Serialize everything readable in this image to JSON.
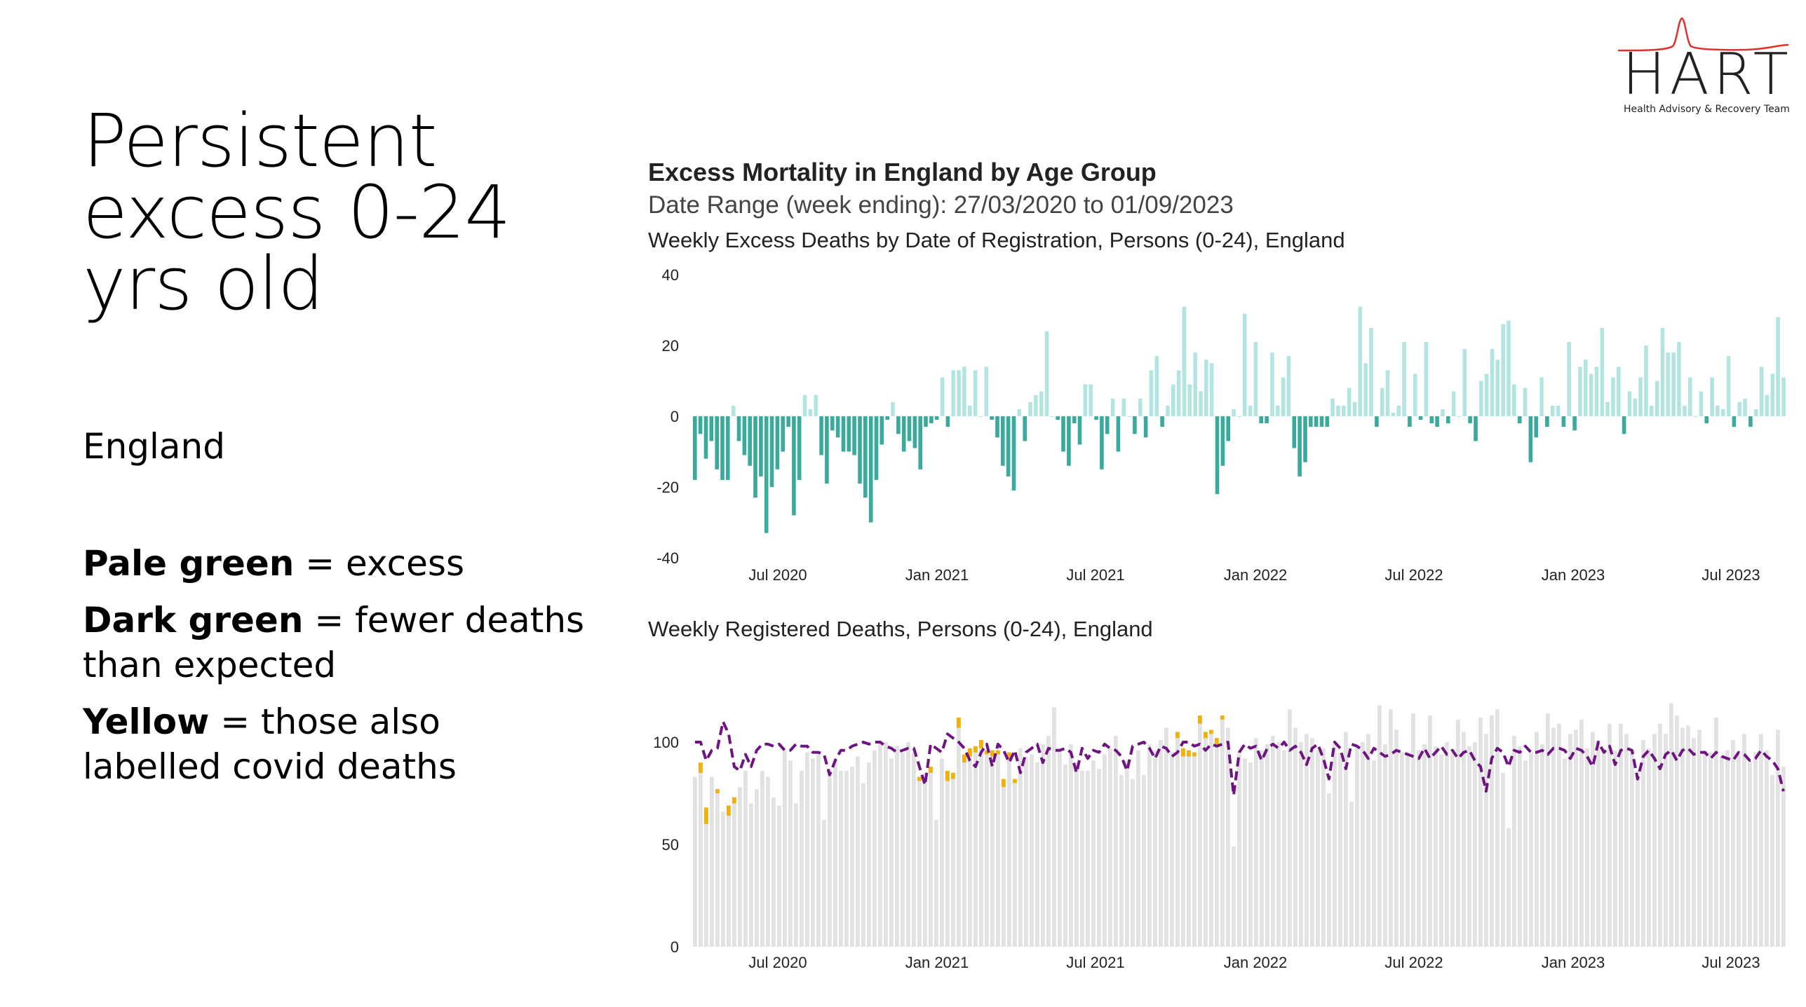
{
  "slide": {
    "title_lines": [
      "Persistent",
      "excess 0-24",
      "yrs old"
    ],
    "region": "England",
    "notes": [
      {
        "bold": "Pale green",
        "rest": " = excess"
      },
      {
        "bold": "Dark green",
        "rest": " = fewer deaths than expected"
      },
      {
        "bold": "Yellow",
        "rest": " = those also labelled covid deaths"
      }
    ]
  },
  "logo": {
    "word": "HART",
    "tagline": "Health Advisory & Recovery Team",
    "accent_color": "#e0302a"
  },
  "chart_header": {
    "title": "Excess Mortality in England by Age Group",
    "subtitle": "Date Range (week ending): 27/03/2020 to 01/09/2023"
  },
  "chart_data": [
    {
      "type": "bar",
      "title": "Weekly Excess Deaths by Date of Registration, Persons (0-24), England",
      "xlabel": "",
      "ylabel": "",
      "ylim": [
        -40,
        40
      ],
      "yticks": [
        40,
        20,
        0,
        -20,
        -40
      ],
      "xticks": [
        "Jul 2020",
        "Jan 2021",
        "Jul 2021",
        "Jan 2022",
        "Jul 2022",
        "Jan 2023",
        "Jul 2023"
      ],
      "colors": {
        "positive": "#b2e4e2",
        "negative": "#3aaa9c"
      },
      "values": [
        -18,
        -5,
        -12,
        -7,
        -15,
        -18,
        -18,
        3,
        -7,
        -11,
        -14,
        -23,
        -17,
        -33,
        -20,
        -15,
        -10,
        -3,
        -28,
        -18,
        6,
        2,
        6,
        -11,
        -19,
        -4,
        -6,
        -10,
        -10,
        -11,
        -19,
        -23,
        -30,
        -18,
        -8,
        -1,
        4,
        -5,
        -10,
        -7,
        -9,
        -15,
        -3,
        -2,
        -1,
        11,
        -3,
        13,
        13,
        14,
        3,
        13,
        0,
        14,
        -1,
        -6,
        -14,
        -17,
        -21,
        2,
        -7,
        4,
        6,
        7,
        24,
        0,
        -1,
        -10,
        -14,
        -2,
        -8,
        9,
        9,
        -1,
        -15,
        -5,
        5,
        -10,
        5,
        0,
        -5,
        5,
        -6,
        13,
        17,
        -3,
        3,
        9,
        13,
        31,
        9,
        18,
        7,
        16,
        15,
        -22,
        -14,
        -7,
        2,
        0,
        29,
        3,
        21,
        -2,
        -2,
        18,
        3,
        11,
        17,
        -9,
        -17,
        -13,
        -3,
        -3,
        -3,
        -3,
        5,
        3,
        3,
        8,
        4,
        31,
        15,
        25,
        -3,
        8,
        13,
        1,
        3,
        21,
        -3,
        12,
        -1,
        21,
        -2,
        -3,
        2,
        -2,
        7,
        0,
        19,
        -2,
        -7,
        10,
        12,
        19,
        16,
        26,
        27,
        9,
        -2,
        8,
        -13,
        -6,
        11,
        -3,
        3,
        3,
        -3,
        21,
        -4,
        14,
        16,
        12,
        14,
        25,
        4,
        11,
        14,
        -5,
        7,
        5,
        11,
        20,
        3,
        10,
        25,
        18,
        18,
        21,
        3,
        11,
        0,
        7,
        -2,
        11,
        3,
        2,
        17,
        -3,
        4,
        5,
        -3,
        2,
        14,
        6,
        12,
        28,
        11
      ]
    },
    {
      "type": "bar",
      "title": "Weekly Registered Deaths, Persons (0-24), England",
      "xlabel": "",
      "ylabel": "",
      "ylim": [
        0,
        132
      ],
      "yticks": [
        100,
        50,
        0
      ],
      "xticks": [
        "Jul 2020",
        "Jan 2021",
        "Jul 2021",
        "Jan 2022",
        "Jul 2022",
        "Jan 2023",
        "Jul 2023"
      ],
      "colors": {
        "deaths": "#e2e2e2",
        "covid": "#f2b00e",
        "expected": "#6e1480"
      },
      "series": [
        {
          "name": "",
          "values": [
            83,
            90,
            68,
            83,
            77,
            66,
            69,
            73,
            78,
            86,
            70,
            77,
            86,
            83,
            73,
            69,
            96,
            91,
            70,
            86,
            95,
            92,
            95,
            62,
            87,
            92,
            86,
            86,
            88,
            93,
            80,
            90,
            96,
            100,
            100,
            92,
            98,
            95,
            100,
            95,
            83,
            85,
            88,
            62,
            92,
            86,
            85,
            112,
            94,
            97,
            98,
            101,
            96,
            96,
            96,
            82,
            95,
            82,
            97,
            93,
            94,
            90,
            99,
            103,
            117,
            97,
            89,
            99,
            90,
            86,
            86,
            91,
            87,
            94,
            97,
            103,
            84,
            91,
            82,
            96,
            84,
            99,
            96,
            101,
            107,
            95,
            105,
            97,
            96,
            95,
            113,
            105,
            106,
            102,
            113,
            107,
            49,
            95,
            92,
            90,
            102,
            96,
            99,
            103,
            100,
            96,
            116,
            107,
            100,
            104,
            102,
            96,
            97,
            75,
            99,
            95,
            105,
            71,
            98,
            100,
            104,
            91,
            118,
            99,
            116,
            106,
            95,
            95,
            114,
            96,
            99,
            113,
            98,
            94,
            100,
            95,
            111,
            105,
            98,
            100,
            112,
            104,
            113,
            116,
            85,
            58,
            103,
            98,
            91,
            95,
            105,
            99,
            114,
            107,
            109,
            92,
            104,
            106,
            111,
            97,
            105,
            101,
            96,
            109,
            96,
            109,
            104,
            96,
            86,
            101,
            97,
            104,
            109,
            104,
            119,
            113,
            107,
            108,
            102,
            106,
            96,
            95,
            112,
            93,
            96,
            101,
            94,
            104,
            90,
            95,
            104,
            96,
            84,
            106,
            88
          ]
        },
        {
          "name": "",
          "values": [
            0,
            5,
            8,
            0,
            2,
            0,
            5,
            3,
            0,
            0,
            0,
            0,
            0,
            0,
            0,
            0,
            0,
            0,
            0,
            0,
            0,
            0,
            0,
            0,
            0,
            0,
            0,
            0,
            0,
            0,
            0,
            0,
            0,
            0,
            0,
            0,
            0,
            0,
            0,
            0,
            2,
            0,
            3,
            0,
            0,
            5,
            3,
            5,
            4,
            4,
            3,
            4,
            2,
            3,
            2,
            4,
            3,
            2,
            0,
            0,
            0,
            0,
            0,
            0,
            0,
            0,
            0,
            0,
            0,
            0,
            0,
            0,
            0,
            0,
            0,
            0,
            0,
            0,
            0,
            0,
            0,
            0,
            0,
            0,
            0,
            0,
            3,
            4,
            3,
            2,
            4,
            3,
            2,
            4,
            2,
            0,
            0,
            0,
            0,
            0,
            0,
            0,
            0,
            0,
            0,
            0,
            0,
            0,
            0,
            0,
            0,
            0,
            0,
            0,
            0,
            0,
            0,
            0,
            0,
            0,
            0,
            0,
            0,
            0,
            0,
            0,
            0,
            0,
            0,
            0,
            0,
            0,
            0,
            0,
            0,
            0,
            0,
            0,
            0,
            0,
            0,
            0,
            0,
            0,
            0,
            0,
            0,
            0,
            0,
            0,
            0,
            0,
            0,
            0,
            0,
            0,
            0,
            0,
            0,
            0,
            0,
            0,
            0,
            0,
            0,
            0,
            0,
            0,
            0,
            0,
            0,
            0,
            0,
            0,
            0,
            0,
            0,
            0,
            0,
            0,
            0,
            0,
            0,
            0,
            0,
            0,
            0,
            0,
            0,
            0,
            0,
            0,
            0,
            0,
            0
          ]
        },
        {
          "name": "",
          "values": [
            100,
            100,
            91,
            96,
            97,
            110,
            104,
            88,
            86,
            94,
            88,
            96,
            99,
            99,
            98,
            99,
            96,
            96,
            99,
            98,
            98,
            95,
            95,
            94,
            84,
            91,
            96,
            96,
            98,
            99,
            100,
            99,
            100,
            100,
            98,
            97,
            95,
            96,
            97,
            97,
            88,
            79,
            99,
            97,
            95,
            104,
            102,
            100,
            97,
            91,
            88,
            95,
            99,
            88,
            99,
            96,
            90,
            96,
            85,
            95,
            97,
            99,
            90,
            97,
            96,
            96,
            97,
            95,
            85,
            97,
            92,
            96,
            95,
            99,
            97,
            96,
            93,
            86,
            98,
            99,
            100,
            97,
            92,
            98,
            97,
            93,
            95,
            100,
            100,
            98,
            99,
            96,
            99,
            98,
            99,
            100,
            74,
            95,
            99,
            97,
            98,
            91,
            97,
            99,
            97,
            100,
            96,
            98,
            95,
            89,
            97,
            99,
            92,
            82,
            100,
            97,
            87,
            99,
            98,
            96,
            92,
            97,
            95,
            93,
            94,
            96,
            95,
            94,
            93,
            92,
            97,
            92,
            95,
            98,
            94,
            96,
            92,
            95,
            96,
            91,
            88,
            76,
            92,
            97,
            95,
            88,
            96,
            95,
            98,
            95,
            95,
            96,
            94,
            97,
            97,
            96,
            92,
            97,
            96,
            93,
            88,
            100,
            95,
            98,
            89,
            96,
            97,
            96,
            82,
            93,
            96,
            92,
            87,
            94,
            96,
            91,
            96,
            97,
            94,
            95,
            95,
            92,
            95,
            93,
            92,
            91,
            95,
            94,
            91,
            92,
            96,
            93,
            91,
            87,
            76
          ]
        }
      ]
    }
  ]
}
